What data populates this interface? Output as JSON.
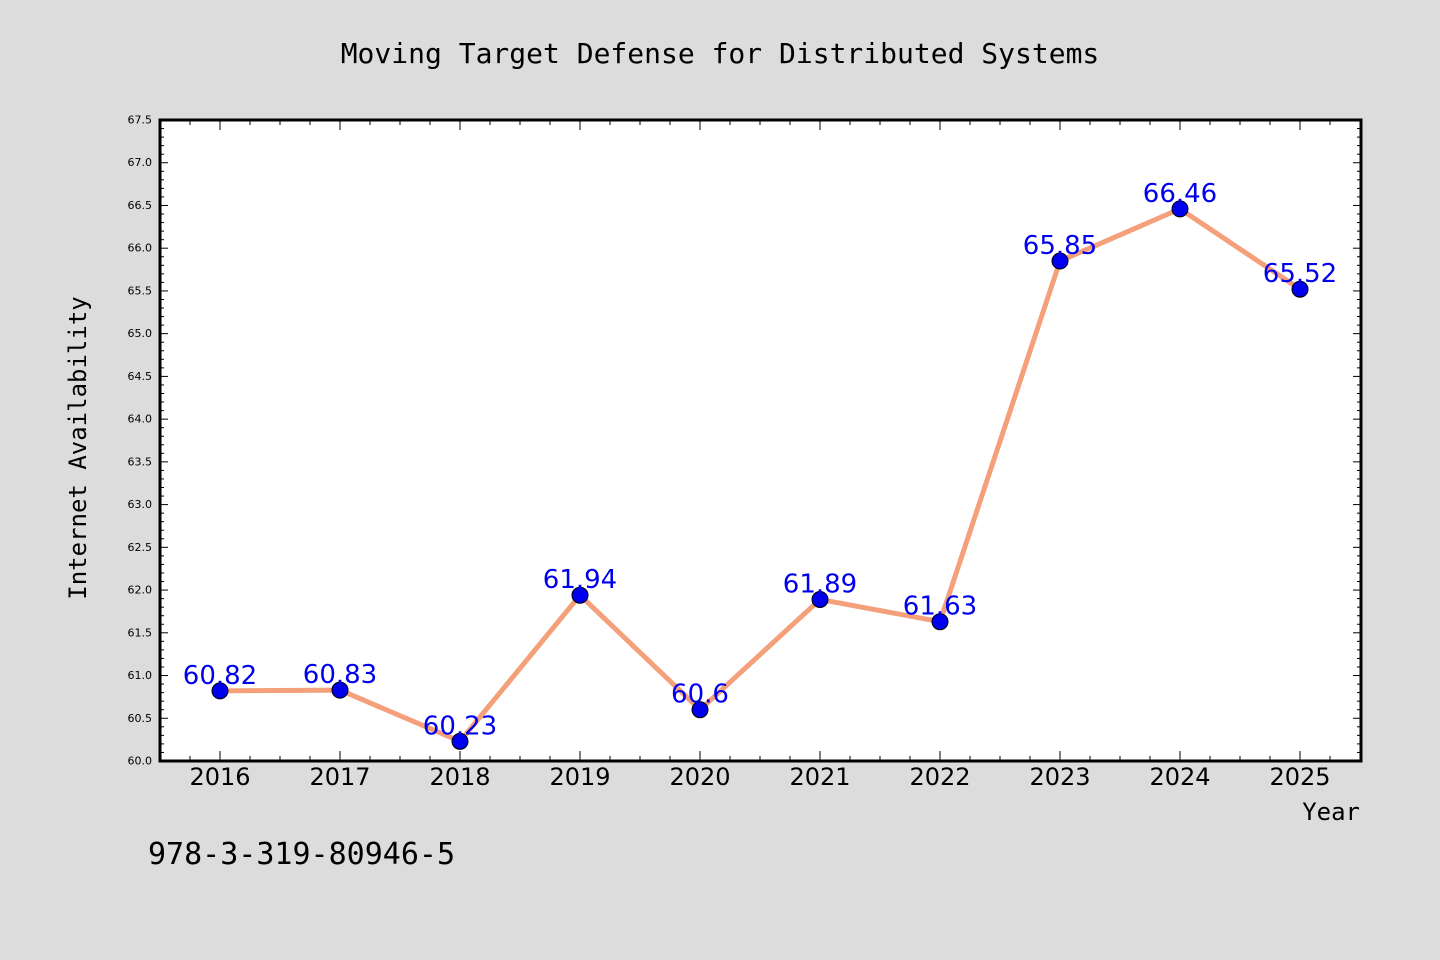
{
  "chart_data": {
    "type": "line",
    "title": "Moving Target Defense for Distributed Systems",
    "xlabel": "Year",
    "ylabel": "Internet Availability",
    "categories": [
      "2016",
      "2017",
      "2018",
      "2019",
      "2020",
      "2021",
      "2022",
      "2023",
      "2024",
      "2025"
    ],
    "series": [
      {
        "values": [
          60.82,
          60.83,
          60.23,
          61.94,
          60.6,
          61.89,
          61.63,
          65.85,
          66.46,
          65.52
        ],
        "labels": [
          "60.82",
          "60.83",
          "60.23",
          "61.94",
          "60.6",
          "61.89",
          "61.63",
          "65.85",
          "66.46",
          "65.52"
        ],
        "line_color": "#f4a07a",
        "marker_color": "#0000ee",
        "label_color": "#0000ee"
      }
    ],
    "ylim": [
      60.0,
      67.5
    ],
    "yticks": [
      "60.0",
      "60.5",
      "61.0",
      "61.5",
      "62.0",
      "62.5",
      "63.0",
      "63.5",
      "64.0",
      "64.5",
      "65.0",
      "65.5",
      "66.0",
      "66.5",
      "67.0",
      "67.5"
    ],
    "grid": false,
    "legend": "none",
    "annotation": "978-3-319-80946-5"
  },
  "colors": {
    "background": "#dcdcdc",
    "plot_background": "#ffffff",
    "axis": "#000000"
  }
}
